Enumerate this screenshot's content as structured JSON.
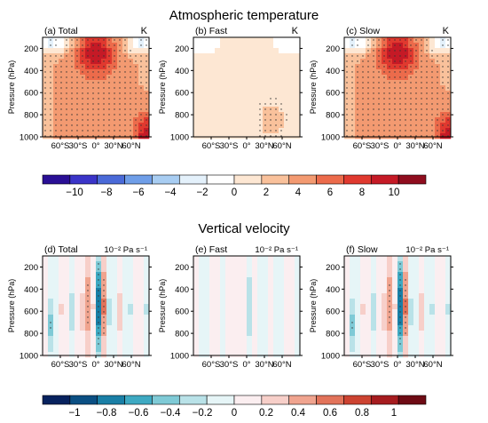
{
  "figure": {
    "section_titles": [
      "Atmospheric temperature",
      "Vertical velocity"
    ]
  },
  "colors": {
    "temperature_scale": [
      "#2a0f95",
      "#3a34c8",
      "#4a6ad8",
      "#6f9ee8",
      "#a8cdf2",
      "#e4f1fb",
      "#ffffff",
      "#fde7d3",
      "#f9c19b",
      "#f39a71",
      "#ec6b4b",
      "#e0392f",
      "#c51a26",
      "#8f0d1e"
    ],
    "velocity_scale": [
      "#07225e",
      "#0b4f83",
      "#1a7fa6",
      "#3ea9c2",
      "#7fcad6",
      "#b9e2e8",
      "#e6f5f7",
      "#fbeef0",
      "#f7cfc9",
      "#f0a48f",
      "#e2735a",
      "#cc4331",
      "#a61c1f",
      "#6e0b14"
    ]
  },
  "chart_data": [
    {
      "type": "heatmap",
      "label": "(a) Total",
      "units": "K",
      "ylabel": "Pressure (hPa)",
      "yticks": [
        200,
        400,
        600,
        800,
        1000
      ],
      "xticks": [
        "60°S",
        "30°S",
        "0°",
        "30°N",
        "60°N"
      ],
      "ylim": [
        1000,
        100
      ],
      "xlim": [
        -90,
        90
      ],
      "field_summary": {
        "max_upper_tropics": 9,
        "surface_high_lat_N": 10,
        "stratosphere_high_lat": -2,
        "mid_troposphere": 4
      }
    },
    {
      "type": "heatmap",
      "label": "(b) Fast",
      "units": "K",
      "ylabel": "Pressure (hPa)",
      "yticks": [
        200,
        400,
        600,
        800,
        1000
      ],
      "xticks": [
        "60°S",
        "30°S",
        "0°",
        "30°N",
        "60°N"
      ],
      "ylim": [
        1000,
        100
      ],
      "xlim": [
        -90,
        90
      ],
      "field_summary": {
        "stratosphere_high_lat": -1,
        "troposphere": 0.5,
        "lower_NH": 1.5
      }
    },
    {
      "type": "heatmap",
      "label": "(c) Slow",
      "units": "K",
      "ylabel": "Pressure (hPa)",
      "yticks": [
        200,
        400,
        600,
        800,
        1000
      ],
      "xticks": [
        "60°S",
        "30°S",
        "0°",
        "30°N",
        "60°N"
      ],
      "ylim": [
        1000,
        100
      ],
      "xlim": [
        -90,
        90
      ],
      "field_summary": {
        "max_upper_tropics": 9,
        "surface_high_lat_N": 10,
        "stratosphere_high_lat": -2,
        "mid_troposphere": 4
      }
    },
    {
      "type": "heatmap",
      "label": "(d) Total",
      "units": "10⁻² Pa s⁻¹",
      "ylabel": "Pressure (hPa)",
      "yticks": [
        200,
        400,
        600,
        800,
        1000
      ],
      "xticks": [
        "60°S",
        "30°S",
        "0°",
        "30°N",
        "60°N"
      ],
      "ylim": [
        1000,
        100
      ],
      "xlim": [
        -90,
        90
      ],
      "field_summary": {
        "equatorial_min": -1,
        "near_equator_max": 0.8,
        "subtropics": 0.3
      }
    },
    {
      "type": "heatmap",
      "label": "(e) Fast",
      "units": "10⁻² Pa s⁻¹",
      "ylabel": "Pressure (hPa)",
      "yticks": [
        200,
        400,
        600,
        800,
        1000
      ],
      "xticks": [
        "60°S",
        "30°S",
        "0°",
        "30°N",
        "60°N"
      ],
      "ylim": [
        1000,
        100
      ],
      "xlim": [
        -90,
        90
      ],
      "field_summary": {
        "equatorial_min": -0.3,
        "near_equator_max": 0.2
      }
    },
    {
      "type": "heatmap",
      "label": "(f) Slow",
      "units": "10⁻² Pa s⁻¹",
      "ylabel": "Pressure (hPa)",
      "yticks": [
        200,
        400,
        600,
        800,
        1000
      ],
      "xticks": [
        "60°S",
        "30°S",
        "0°",
        "30°N",
        "60°N"
      ],
      "ylim": [
        1000,
        100
      ],
      "xlim": [
        -90,
        90
      ],
      "field_summary": {
        "equatorial_min": -1,
        "near_equator_max": 0.8,
        "subtropics": 0.3
      }
    }
  ],
  "colorbars": {
    "temperature": {
      "labels": [
        "−10",
        "−8",
        "−6",
        "−4",
        "−2",
        "0",
        "2",
        "4",
        "6",
        "8",
        "10"
      ]
    },
    "velocity": {
      "labels": [
        "−1",
        "−0.8",
        "−0.6",
        "−0.4",
        "−0.2",
        "0",
        "0.2",
        "0.4",
        "0.6",
        "0.8",
        "1"
      ]
    }
  }
}
